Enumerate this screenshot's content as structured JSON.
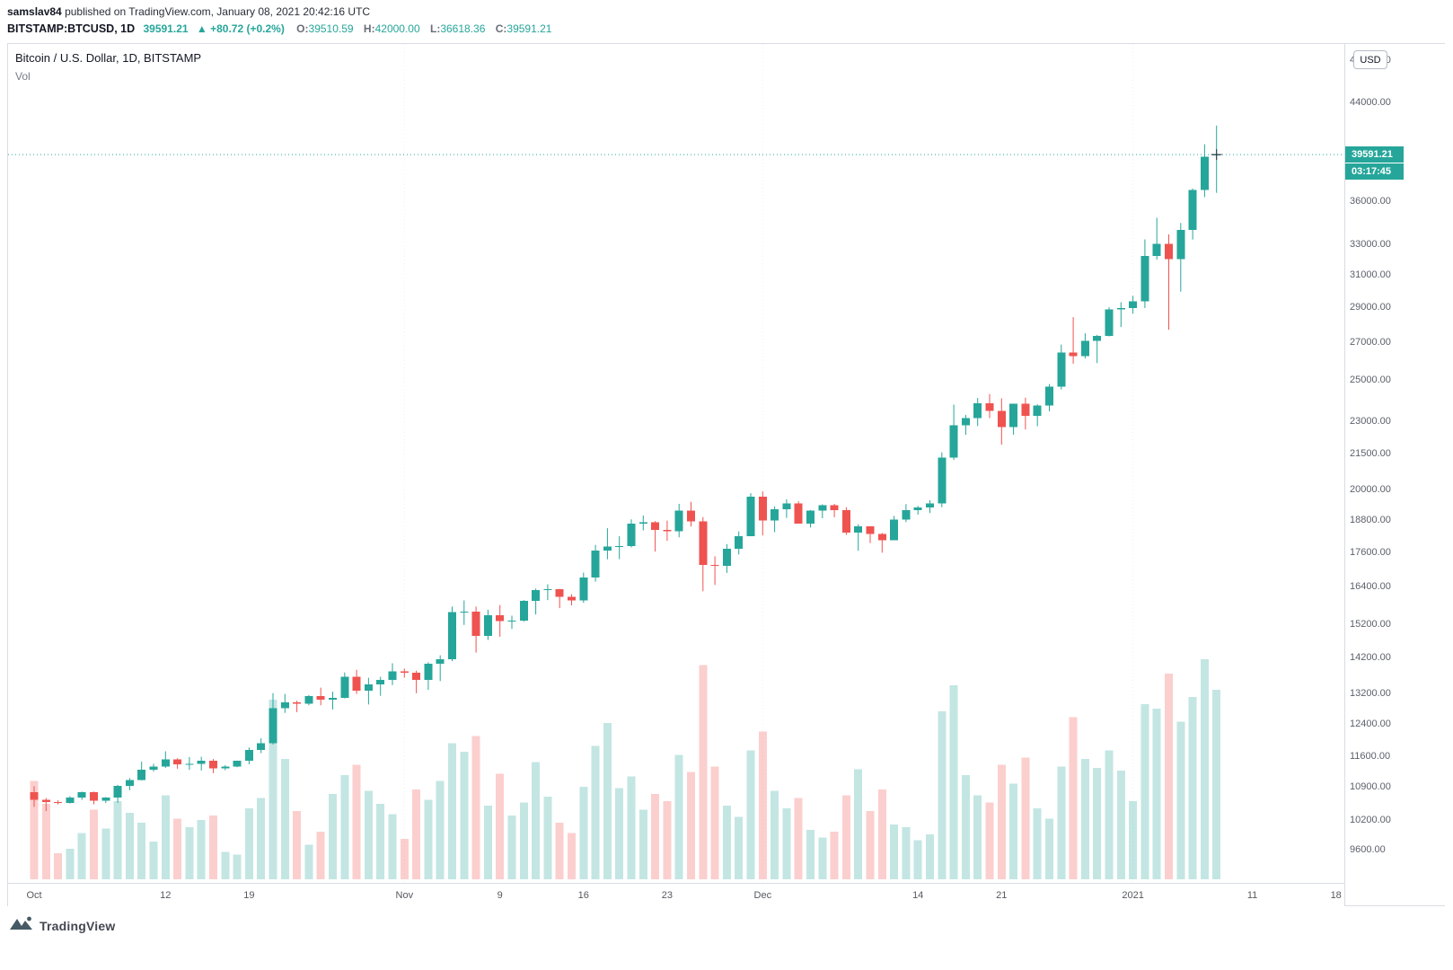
{
  "page": {
    "header_line1": {
      "author": "samslav84",
      "rest": " published on TradingView.com, January 08, 2021 20:42:16 UTC"
    },
    "header_line2": {
      "symbol": "BITSTAMP:BTCUSD, 1D",
      "price": "39591.21",
      "change": "▲ +80.72 (+0.2%)",
      "ohlc": [
        {
          "label": "O:",
          "value": "39510.59"
        },
        {
          "label": "H:",
          "value": "42000.00"
        },
        {
          "label": "L:",
          "value": "36618.36"
        },
        {
          "label": "C:",
          "value": "39591.21"
        }
      ]
    },
    "footer_brand": "TradingView"
  },
  "chart": {
    "legend_title": "Bitcoin / U.S. Dollar, 1D, BITSTAMP",
    "vol_label": "Vol",
    "currency_button": "USD",
    "last_price_label": "39591.21",
    "countdown_label": "03:17:45",
    "colors": {
      "up": "#26a69a",
      "down": "#ef5350",
      "vol_up": "rgba(38,166,154,0.28)",
      "vol_down": "rgba(239,83,80,0.28)",
      "grid": "#edeff4",
      "price_line": "#26a69a",
      "marker": "#2a2e39"
    }
  },
  "chart_data": {
    "type": "candlestick",
    "title": "Bitcoin / U.S. Dollar, 1D, BITSTAMP",
    "symbol": "BITSTAMP:BTCUSD",
    "interval": "1D",
    "y_scale": "log",
    "last_price": 39591.21,
    "last_bar": {
      "open": 39510.59,
      "high": 42000.0,
      "low": 36618.36,
      "close": 39591.21
    },
    "countdown": "03:17:45",
    "y_axis_ticks": [
      {
        "label": "48000.00",
        "value": 48000
      },
      {
        "label": "44000.00",
        "value": 44000
      },
      {
        "label": "36000.00",
        "value": 36000
      },
      {
        "label": "33000.00",
        "value": 33000
      },
      {
        "label": "31000.00",
        "value": 31000
      },
      {
        "label": "29000.00",
        "value": 29000
      },
      {
        "label": "27000.00",
        "value": 27000
      },
      {
        "label": "25000.00",
        "value": 25000
      },
      {
        "label": "23000.00",
        "value": 23000
      },
      {
        "label": "21500.00",
        "value": 21500
      },
      {
        "label": "20000.00",
        "value": 20000
      },
      {
        "label": "18800.00",
        "value": 18800
      },
      {
        "label": "17600.00",
        "value": 17600
      },
      {
        "label": "16400.00",
        "value": 16400
      },
      {
        "label": "15200.00",
        "value": 15200
      },
      {
        "label": "14200.00",
        "value": 14200
      },
      {
        "label": "13200.00",
        "value": 13200
      },
      {
        "label": "12400.00",
        "value": 12400
      },
      {
        "label": "11600.00",
        "value": 11600
      },
      {
        "label": "10900.00",
        "value": 10900
      },
      {
        "label": "10200.00",
        "value": 10200
      },
      {
        "label": "9600.00",
        "value": 9600
      }
    ],
    "x_axis_ticks": [
      {
        "label": "Oct",
        "day": 0
      },
      {
        "label": "12",
        "day": 11
      },
      {
        "label": "19",
        "day": 18
      },
      {
        "label": "Nov",
        "day": 31
      },
      {
        "label": "9",
        "day": 39
      },
      {
        "label": "16",
        "day": 46
      },
      {
        "label": "23",
        "day": 53
      },
      {
        "label": "Dec",
        "day": 61
      },
      {
        "label": "14",
        "day": 74
      },
      {
        "label": "21",
        "day": 81
      },
      {
        "label": "2021",
        "day": 92
      },
      {
        "label": "11",
        "day": 102
      },
      {
        "label": "18",
        "day": 109
      }
    ],
    "month_breaks": [
      31,
      61,
      92
    ],
    "columns": [
      "date",
      "open",
      "high",
      "low",
      "close",
      "volume"
    ],
    "candles": [
      [
        "2020-10-01",
        10785,
        10920,
        10470,
        10620,
        6800
      ],
      [
        "2020-10-02",
        10620,
        10660,
        10380,
        10570,
        5200
      ],
      [
        "2020-10-03",
        10570,
        10610,
        10520,
        10550,
        1800
      ],
      [
        "2020-10-04",
        10550,
        10700,
        10540,
        10670,
        2100
      ],
      [
        "2020-10-05",
        10670,
        10800,
        10620,
        10790,
        3200
      ],
      [
        "2020-10-06",
        10790,
        10800,
        10525,
        10600,
        4800
      ],
      [
        "2020-10-07",
        10600,
        10680,
        10550,
        10670,
        3500
      ],
      [
        "2020-10-08",
        10670,
        10950,
        10555,
        10925,
        5400
      ],
      [
        "2020-10-09",
        10925,
        11100,
        10830,
        11060,
        4600
      ],
      [
        "2020-10-10",
        11060,
        11480,
        11050,
        11290,
        3900
      ],
      [
        "2020-10-11",
        11290,
        11430,
        11250,
        11370,
        2600
      ],
      [
        "2020-10-12",
        11370,
        11725,
        11335,
        11530,
        5800
      ],
      [
        "2020-10-13",
        11530,
        11560,
        11315,
        11420,
        4200
      ],
      [
        "2020-10-14",
        11420,
        11590,
        11290,
        11425,
        3600
      ],
      [
        "2020-10-15",
        11425,
        11595,
        11275,
        11500,
        4100
      ],
      [
        "2020-10-16",
        11500,
        11540,
        11215,
        11320,
        4400
      ],
      [
        "2020-10-17",
        11320,
        11400,
        11280,
        11370,
        1900
      ],
      [
        "2020-10-18",
        11370,
        11505,
        11350,
        11505,
        1700
      ],
      [
        "2020-10-19",
        11505,
        11815,
        11420,
        11755,
        4900
      ],
      [
        "2020-10-20",
        11755,
        12040,
        11680,
        11915,
        5600
      ],
      [
        "2020-10-21",
        11915,
        13200,
        11890,
        12805,
        12400
      ],
      [
        "2020-10-22",
        12805,
        13180,
        12680,
        12960,
        8300
      ],
      [
        "2020-10-23",
        12960,
        13000,
        12700,
        12920,
        4700
      ],
      [
        "2020-10-24",
        12920,
        13150,
        12880,
        13120,
        2400
      ],
      [
        "2020-10-25",
        13120,
        13350,
        12880,
        13030,
        3300
      ],
      [
        "2020-10-26",
        13030,
        13240,
        12770,
        13070,
        5900
      ],
      [
        "2020-10-27",
        13070,
        13770,
        13060,
        13655,
        7200
      ],
      [
        "2020-10-28",
        13655,
        13845,
        13180,
        13270,
        7900
      ],
      [
        "2020-10-29",
        13270,
        13620,
        12900,
        13445,
        6100
      ],
      [
        "2020-10-30",
        13445,
        13650,
        13130,
        13560,
        5200
      ],
      [
        "2020-10-31",
        13560,
        14030,
        13420,
        13800,
        4500
      ],
      [
        "2020-11-01",
        13800,
        13880,
        13625,
        13760,
        2800
      ],
      [
        "2020-11-02",
        13760,
        13820,
        13200,
        13560,
        6200
      ],
      [
        "2020-11-03",
        13560,
        14060,
        13290,
        14020,
        5500
      ],
      [
        "2020-11-04",
        14020,
        14260,
        13530,
        14140,
        6800
      ],
      [
        "2020-11-05",
        14140,
        15750,
        14090,
        15580,
        9400
      ],
      [
        "2020-11-06",
        15580,
        15950,
        15170,
        15590,
        8800
      ],
      [
        "2020-11-07",
        15590,
        15750,
        14340,
        14835,
        9900
      ],
      [
        "2020-11-08",
        14835,
        15650,
        14715,
        15475,
        5100
      ],
      [
        "2020-11-09",
        15475,
        15800,
        14810,
        15290,
        7300
      ],
      [
        "2020-11-10",
        15290,
        15460,
        15050,
        15300,
        4400
      ],
      [
        "2020-11-11",
        15300,
        15960,
        15270,
        15940,
        5300
      ],
      [
        "2020-11-12",
        15940,
        16340,
        15500,
        16290,
        8100
      ],
      [
        "2020-11-13",
        16290,
        16480,
        15960,
        16320,
        5700
      ],
      [
        "2020-11-14",
        16320,
        16330,
        15700,
        16070,
        3900
      ],
      [
        "2020-11-15",
        16070,
        16150,
        15790,
        15955,
        3200
      ],
      [
        "2020-11-16",
        15955,
        16880,
        15870,
        16715,
        6400
      ],
      [
        "2020-11-17",
        16715,
        17860,
        16570,
        17650,
        9200
      ],
      [
        "2020-11-18",
        17650,
        18480,
        17345,
        17805,
        10800
      ],
      [
        "2020-11-19",
        17805,
        18180,
        17350,
        17815,
        6300
      ],
      [
        "2020-11-20",
        17815,
        18815,
        17770,
        18655,
        7100
      ],
      [
        "2020-11-21",
        18655,
        18965,
        18400,
        18700,
        4800
      ],
      [
        "2020-11-22",
        18700,
        18750,
        17620,
        18415,
        5900
      ],
      [
        "2020-11-23",
        18415,
        18770,
        18010,
        18370,
        5400
      ],
      [
        "2020-11-24",
        18370,
        19420,
        18140,
        19160,
        8600
      ],
      [
        "2020-11-25",
        19160,
        19500,
        18545,
        18735,
        7400
      ],
      [
        "2020-11-26",
        18735,
        18905,
        16250,
        17150,
        14800
      ],
      [
        "2020-11-27",
        17150,
        17450,
        16460,
        17110,
        7800
      ],
      [
        "2020-11-28",
        17110,
        17890,
        16870,
        17720,
        5100
      ],
      [
        "2020-11-29",
        17720,
        18360,
        17515,
        18185,
        4300
      ],
      [
        "2020-11-30",
        18185,
        19845,
        18185,
        19700,
        8900
      ],
      [
        "2020-12-01",
        19700,
        19920,
        18210,
        18770,
        10200
      ],
      [
        "2020-12-02",
        18770,
        19320,
        18330,
        19205,
        6100
      ],
      [
        "2020-12-03",
        19205,
        19600,
        18870,
        19435,
        4900
      ],
      [
        "2020-12-04",
        19435,
        19520,
        18650,
        18650,
        5600
      ],
      [
        "2020-12-05",
        18650,
        19175,
        18510,
        19150,
        3400
      ],
      [
        "2020-12-06",
        19150,
        19400,
        18860,
        19360,
        2900
      ],
      [
        "2020-12-07",
        19360,
        19420,
        18900,
        19170,
        3300
      ],
      [
        "2020-12-08",
        19170,
        19285,
        18230,
        18320,
        5800
      ],
      [
        "2020-12-09",
        18320,
        18630,
        17650,
        18550,
        7600
      ],
      [
        "2020-12-10",
        18550,
        18555,
        17930,
        18260,
        4700
      ],
      [
        "2020-12-11",
        18260,
        18300,
        17580,
        18035,
        6200
      ],
      [
        "2020-12-12",
        18035,
        18950,
        18035,
        18810,
        3800
      ],
      [
        "2020-12-13",
        18810,
        19410,
        18710,
        19175,
        3600
      ],
      [
        "2020-12-14",
        19175,
        19340,
        19000,
        19270,
        2700
      ],
      [
        "2020-12-15",
        19270,
        19565,
        19060,
        19435,
        3100
      ],
      [
        "2020-12-16",
        19435,
        21570,
        19290,
        21340,
        11600
      ],
      [
        "2020-12-17",
        21340,
        23775,
        21240,
        22805,
        13400
      ],
      [
        "2020-12-18",
        22805,
        23285,
        22355,
        23125,
        7200
      ],
      [
        "2020-12-19",
        23125,
        24100,
        22760,
        23850,
        5800
      ],
      [
        "2020-12-20",
        23850,
        24295,
        23130,
        23465,
        5300
      ],
      [
        "2020-12-21",
        23465,
        24085,
        21910,
        22720,
        7900
      ],
      [
        "2020-12-22",
        22720,
        23825,
        22360,
        23810,
        6600
      ],
      [
        "2020-12-23",
        23810,
        24115,
        22600,
        23240,
        8400
      ],
      [
        "2020-12-24",
        23240,
        23790,
        22750,
        23735,
        4900
      ],
      [
        "2020-12-25",
        23735,
        24795,
        23455,
        24665,
        4200
      ],
      [
        "2020-12-26",
        24665,
        26870,
        24520,
        26440,
        7800
      ],
      [
        "2020-12-27",
        26440,
        28420,
        25845,
        26250,
        11200
      ],
      [
        "2020-12-28",
        26250,
        27500,
        26120,
        27080,
        8300
      ],
      [
        "2020-12-29",
        27080,
        27410,
        25880,
        27360,
        7700
      ],
      [
        "2020-12-30",
        27360,
        28995,
        27320,
        28875,
        8900
      ],
      [
        "2020-12-31",
        28875,
        29300,
        27850,
        28950,
        7500
      ],
      [
        "2021-01-01",
        28950,
        29680,
        28620,
        29350,
        5400
      ],
      [
        "2021-01-02",
        29350,
        33300,
        28950,
        32180,
        12100
      ],
      [
        "2021-01-03",
        32180,
        34800,
        31960,
        32990,
        11800
      ],
      [
        "2021-01-04",
        32990,
        33640,
        27700,
        31990,
        14200
      ],
      [
        "2021-01-05",
        31990,
        34435,
        29935,
        33945,
        10900
      ],
      [
        "2021-01-06",
        33945,
        36940,
        33290,
        36830,
        12600
      ],
      [
        "2021-01-07",
        36830,
        40425,
        36300,
        39400,
        15200
      ],
      [
        "2021-01-08",
        39510.59,
        42000.0,
        36618.36,
        39591.21,
        13100
      ]
    ]
  }
}
